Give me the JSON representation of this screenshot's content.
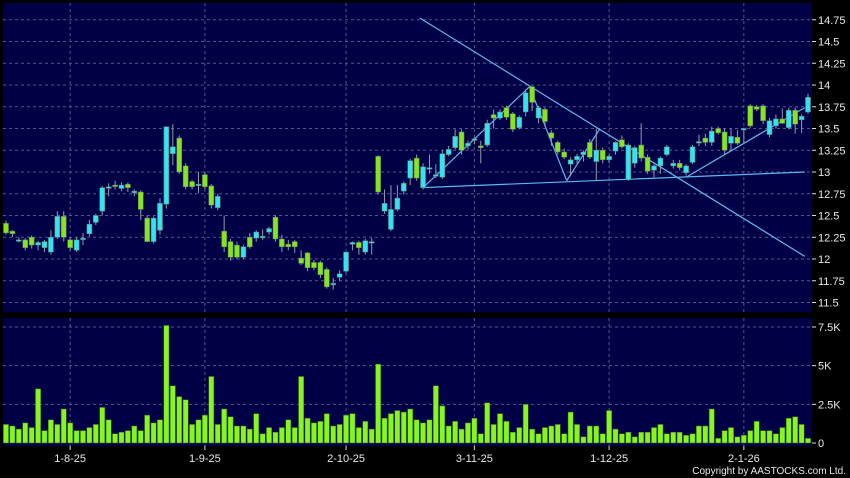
{
  "chart_data": [
    {
      "type": "candlestick",
      "panel": "price",
      "ylim": [
        11.5,
        14.75
      ],
      "y_ticks": [
        "14.75",
        "14.5",
        "14.25",
        "14",
        "13.75",
        "13.5",
        "13.25",
        "13",
        "12.75",
        "12.5",
        "12.25",
        "12",
        "11.75",
        "11.5"
      ],
      "x_ticks": [
        {
          "label": "1-8-25",
          "bar": 10
        },
        {
          "label": "1-9-25",
          "bar": 31
        },
        {
          "label": "2-10-25",
          "bar": 53
        },
        {
          "label": "3-11-25",
          "bar": 73
        },
        {
          "label": "1-12-25",
          "bar": 94
        },
        {
          "label": "2-1-26",
          "bar": 115
        }
      ],
      "grid": true,
      "colors": {
        "up": "#33e3f2",
        "down": "#84e61e",
        "background": "#000046",
        "grid": "#55558f",
        "trendline": "#5fb8ee"
      },
      "candles_ohlc": [
        [
          12.41,
          12.44,
          12.28,
          12.3
        ],
        [
          12.32,
          12.33,
          12.25,
          12.29
        ],
        [
          12.22,
          12.25,
          12.19,
          12.22
        ],
        [
          12.22,
          12.24,
          12.1,
          12.13
        ],
        [
          12.25,
          12.27,
          12.12,
          12.16
        ],
        [
          12.16,
          12.21,
          12.1,
          12.19
        ],
        [
          12.13,
          12.22,
          12.08,
          12.2
        ],
        [
          12.08,
          12.33,
          12.05,
          12.25
        ],
        [
          12.25,
          12.55,
          12.23,
          12.49
        ],
        [
          12.49,
          12.55,
          12.2,
          12.25
        ],
        [
          12.22,
          12.25,
          12.1,
          12.13
        ],
        [
          12.1,
          12.25,
          12.08,
          12.22
        ],
        [
          12.24,
          12.3,
          12.16,
          12.24
        ],
        [
          12.29,
          12.45,
          12.26,
          12.4
        ],
        [
          12.42,
          12.52,
          12.39,
          12.5
        ],
        [
          12.55,
          12.84,
          12.5,
          12.82
        ],
        [
          12.83,
          12.87,
          12.72,
          12.83
        ],
        [
          12.85,
          12.9,
          12.8,
          12.84
        ],
        [
          12.81,
          12.88,
          12.78,
          12.85
        ],
        [
          12.86,
          12.88,
          12.77,
          12.82
        ],
        [
          12.76,
          12.8,
          12.72,
          12.78
        ],
        [
          12.77,
          12.79,
          12.45,
          12.57
        ],
        [
          12.47,
          12.5,
          12.2,
          12.2
        ],
        [
          12.2,
          12.49,
          12.18,
          12.47
        ],
        [
          12.33,
          12.7,
          12.28,
          12.64
        ],
        [
          12.63,
          13.52,
          12.58,
          13.52
        ],
        [
          13.21,
          13.55,
          13.08,
          13.29
        ],
        [
          13.39,
          13.42,
          12.98,
          13.0
        ],
        [
          13.07,
          13.1,
          12.8,
          12.83
        ],
        [
          12.89,
          12.91,
          12.8,
          12.83
        ],
        [
          12.86,
          13.0,
          12.76,
          12.86
        ],
        [
          12.97,
          13.0,
          12.8,
          12.83
        ],
        [
          12.84,
          12.86,
          12.58,
          12.62
        ],
        [
          12.59,
          12.75,
          12.56,
          12.72
        ],
        [
          12.32,
          12.5,
          12.08,
          12.14
        ],
        [
          12.2,
          12.23,
          11.98,
          12.02
        ],
        [
          12.16,
          12.2,
          12.0,
          12.02
        ],
        [
          12.02,
          12.16,
          12.0,
          12.14
        ],
        [
          12.25,
          12.3,
          12.12,
          12.14
        ],
        [
          12.24,
          12.33,
          12.2,
          12.31
        ],
        [
          12.26,
          12.34,
          12.22,
          12.26
        ],
        [
          12.31,
          12.37,
          12.28,
          12.35
        ],
        [
          12.48,
          12.5,
          12.2,
          12.23
        ],
        [
          12.23,
          12.28,
          12.08,
          12.14
        ],
        [
          12.17,
          12.22,
          12.1,
          12.14
        ],
        [
          12.2,
          12.22,
          12.07,
          12.14
        ],
        [
          12.01,
          12.1,
          11.93,
          11.95
        ],
        [
          12.07,
          12.08,
          11.86,
          11.9
        ],
        [
          11.96,
          11.99,
          11.87,
          11.9
        ],
        [
          11.96,
          11.98,
          11.78,
          11.82
        ],
        [
          11.88,
          11.9,
          11.66,
          11.68
        ],
        [
          11.72,
          11.78,
          11.65,
          11.72
        ],
        [
          11.79,
          11.87,
          11.75,
          11.83
        ],
        [
          11.86,
          12.08,
          11.84,
          12.08
        ],
        [
          12.17,
          12.2,
          12.1,
          12.19
        ],
        [
          12.19,
          12.21,
          12.05,
          12.13
        ],
        [
          12.08,
          12.23,
          12.05,
          12.21
        ],
        [
          12.2,
          12.24,
          12.05,
          12.2
        ],
        [
          13.18,
          13.19,
          12.74,
          12.77
        ],
        [
          12.55,
          12.8,
          12.52,
          12.64
        ],
        [
          12.34,
          12.85,
          12.32,
          12.57
        ],
        [
          12.57,
          12.85,
          12.55,
          12.7
        ],
        [
          12.78,
          12.89,
          12.74,
          12.87
        ],
        [
          12.93,
          13.15,
          12.85,
          13.13
        ],
        [
          13.16,
          13.2,
          12.9,
          12.93
        ],
        [
          12.82,
          13.1,
          12.8,
          13.06
        ],
        [
          13.05,
          13.2,
          12.98,
          13.05
        ],
        [
          12.97,
          13.09,
          12.93,
          12.97
        ],
        [
          12.94,
          13.25,
          12.92,
          13.21
        ],
        [
          13.2,
          13.3,
          13.18,
          13.26
        ],
        [
          13.28,
          13.49,
          13.26,
          13.41
        ],
        [
          13.46,
          13.49,
          13.2,
          13.25
        ],
        [
          13.3,
          13.36,
          13.26,
          13.33
        ],
        [
          13.38,
          13.4,
          13.32,
          13.38
        ],
        [
          13.3,
          13.36,
          13.1,
          13.28
        ],
        [
          13.31,
          13.6,
          13.29,
          13.56
        ],
        [
          13.66,
          13.72,
          13.5,
          13.62
        ],
        [
          13.62,
          13.72,
          13.6,
          13.69
        ],
        [
          13.74,
          13.76,
          13.6,
          13.63
        ],
        [
          13.67,
          13.69,
          13.46,
          13.49
        ],
        [
          13.51,
          13.65,
          13.49,
          13.63
        ],
        [
          13.69,
          13.95,
          13.64,
          13.91
        ],
        [
          13.98,
          13.99,
          13.7,
          13.8
        ],
        [
          13.62,
          13.76,
          13.56,
          13.74
        ],
        [
          13.72,
          13.74,
          13.52,
          13.58
        ],
        [
          13.45,
          13.48,
          13.3,
          13.39
        ],
        [
          13.34,
          13.36,
          13.2,
          13.23
        ],
        [
          13.23,
          13.27,
          13.15,
          13.17
        ],
        [
          13.09,
          13.17,
          12.95,
          13.14
        ],
        [
          13.14,
          13.21,
          13.1,
          13.18
        ],
        [
          13.2,
          13.25,
          13.12,
          13.23
        ],
        [
          13.34,
          13.38,
          13.15,
          13.17
        ],
        [
          13.12,
          13.5,
          12.9,
          13.25
        ],
        [
          13.25,
          13.28,
          13.1,
          13.14
        ],
        [
          13.14,
          13.2,
          13.1,
          13.18
        ],
        [
          13.24,
          13.35,
          13.2,
          13.34
        ],
        [
          13.37,
          13.42,
          13.27,
          13.29
        ],
        [
          12.91,
          13.33,
          12.9,
          13.31
        ],
        [
          13.1,
          13.3,
          13.05,
          13.28
        ],
        [
          13.31,
          13.56,
          13.12,
          13.16
        ],
        [
          13.17,
          13.2,
          12.98,
          13.01
        ],
        [
          13.02,
          13.09,
          12.94,
          13.07
        ],
        [
          13.07,
          13.18,
          12.98,
          13.16
        ],
        [
          13.2,
          13.31,
          13.18,
          13.29
        ],
        [
          13.07,
          13.14,
          13.04,
          13.1
        ],
        [
          13.1,
          13.14,
          13.02,
          13.05
        ],
        [
          12.99,
          13.09,
          12.96,
          13.07
        ],
        [
          13.11,
          13.31,
          13.09,
          13.29
        ],
        [
          13.35,
          13.43,
          13.3,
          13.35
        ],
        [
          13.39,
          13.44,
          13.3,
          13.34
        ],
        [
          13.34,
          13.52,
          13.3,
          13.47
        ],
        [
          13.5,
          13.52,
          13.43,
          13.45
        ],
        [
          13.46,
          13.5,
          13.2,
          13.25
        ],
        [
          13.33,
          13.5,
          13.25,
          13.41
        ],
        [
          13.4,
          13.48,
          13.31,
          13.33
        ],
        [
          13.5,
          13.51,
          13.34,
          13.5
        ],
        [
          13.76,
          13.78,
          13.51,
          13.53
        ],
        [
          13.75,
          13.77,
          13.7,
          13.72
        ],
        [
          13.76,
          13.78,
          13.55,
          13.59
        ],
        [
          13.43,
          13.62,
          13.4,
          13.59
        ],
        [
          13.53,
          13.66,
          13.5,
          13.61
        ],
        [
          13.61,
          13.73,
          13.55,
          13.56
        ],
        [
          13.51,
          13.74,
          13.49,
          13.71
        ],
        [
          13.71,
          13.74,
          13.44,
          13.55
        ],
        [
          13.6,
          13.66,
          13.45,
          13.64
        ],
        [
          13.69,
          13.9,
          13.67,
          13.86
        ]
      ],
      "trendlines": [
        {
          "from": [
            64.5,
            14.77
          ],
          "to": [
            124.5,
            12.03
          ]
        },
        {
          "from": [
            65,
            12.82
          ],
          "to": [
            124.5,
            13.0
          ]
        },
        {
          "from": [
            65,
            12.82
          ],
          "to": [
            81.6,
            13.98
          ]
        },
        {
          "from": [
            81.6,
            13.98
          ],
          "to": [
            87.4,
            12.9
          ]
        },
        {
          "from": [
            87.4,
            12.9
          ],
          "to": [
            92.5,
            13.49
          ]
        },
        {
          "from": [
            106,
            12.94
          ],
          "to": [
            124.5,
            13.74
          ]
        }
      ]
    },
    {
      "type": "bar",
      "panel": "volume",
      "ylim": [
        0,
        7.5
      ],
      "y_ticks": [
        {
          "label": "7.5K",
          "value": 7.5
        },
        {
          "label": "5K",
          "value": 5
        },
        {
          "label": "2.5K",
          "value": 2.5
        },
        {
          "label": "0",
          "value": 0
        }
      ],
      "x_ticks": [
        {
          "label": "1-8-25",
          "bar": 10
        },
        {
          "label": "1-9-25",
          "bar": 31
        },
        {
          "label": "2-10-25",
          "bar": 53
        },
        {
          "label": "3-11-25",
          "bar": 73
        },
        {
          "label": "1-12-25",
          "bar": 94
        },
        {
          "label": "2-1-26",
          "bar": 115
        }
      ],
      "grid": true,
      "colors": {
        "bar": "#88f522",
        "background": "#000046"
      },
      "values_k": [
        1.2,
        1.1,
        0.9,
        1.3,
        1.0,
        3.5,
        0.8,
        1.5,
        1.2,
        2.2,
        1.3,
        0.8,
        0.8,
        1.0,
        1.2,
        2.3,
        1.5,
        0.6,
        0.7,
        0.8,
        1.1,
        0.8,
        1.8,
        1.3,
        1.5,
        7.6,
        3.7,
        3.0,
        2.8,
        1.2,
        1.5,
        1.8,
        4.3,
        1.2,
        2.2,
        1.7,
        1.1,
        1.1,
        0.9,
        1.9,
        0.6,
        1.0,
        0.7,
        1.0,
        1.5,
        1.0,
        4.3,
        1.6,
        1.3,
        1.4,
        1.9,
        1.1,
        1.2,
        1.8,
        1.9,
        1.0,
        1.4,
        0.9,
        5.1,
        1.6,
        1.9,
        2.1,
        2.0,
        2.2,
        1.5,
        1.3,
        1.5,
        3.7,
        2.4,
        1.1,
        1.4,
        0.9,
        1.3,
        1.6,
        0.6,
        2.6,
        1.2,
        1.9,
        1.4,
        0.7,
        1.0,
        2.5,
        0.9,
        0.6,
        1.0,
        1.1,
        1.2,
        0.6,
        2.0,
        1.2,
        0.4,
        1.1,
        1.1,
        0.6,
        2.1,
        0.9,
        0.6,
        0.7,
        0.4,
        0.7,
        0.7,
        1.0,
        1.2,
        0.6,
        0.7,
        0.7,
        0.5,
        0.6,
        1.1,
        1.1,
        2.2,
        0.3,
        0.8,
        1.0,
        0.4,
        0.5,
        0.8,
        1.4,
        0.8,
        0.8,
        0.6,
        1.0,
        1.6,
        1.7,
        1.2,
        0.3
      ]
    }
  ],
  "footer": {
    "copyright": "Copyright by AASTOCKS.com Ltd."
  }
}
